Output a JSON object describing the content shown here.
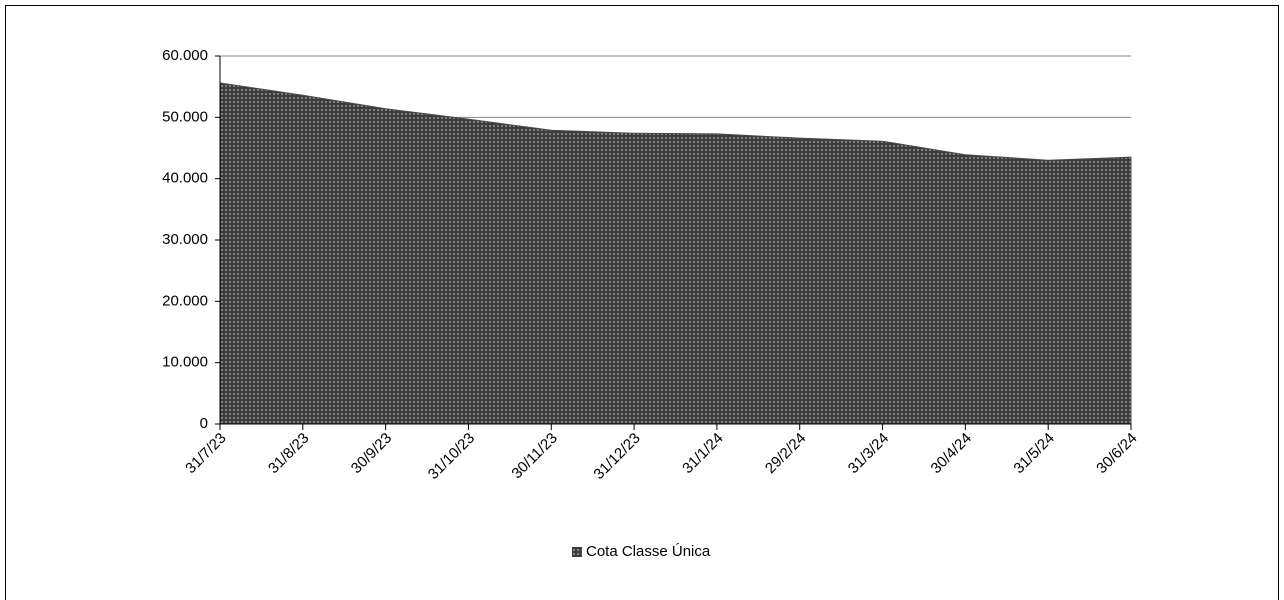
{
  "chart_data": {
    "type": "area",
    "categories": [
      "31/7/23",
      "31/8/23",
      "30/9/23",
      "31/10/23",
      "30/11/23",
      "31/12/23",
      "31/1/24",
      "29/2/24",
      "31/3/24",
      "30/4/24",
      "31/5/24",
      "30/6/24"
    ],
    "series": [
      {
        "name": "Cota Classe Única",
        "color": "#4a4a4a",
        "values": [
          55600,
          53600,
          51400,
          49700,
          47900,
          47400,
          47300,
          46600,
          46100,
          43900,
          43000,
          43500
        ]
      }
    ],
    "ylim": [
      0,
      60000
    ],
    "yticks": [
      0,
      {
        "value": 10000,
        "label": "10.000"
      },
      {
        "value": 20000,
        "label": "20.000"
      },
      {
        "value": 30000,
        "label": "30.000"
      },
      {
        "value": 40000,
        "label": "40.000"
      },
      {
        "value": 50000,
        "label": "50.000"
      },
      {
        "value": 60000,
        "label": "60.000"
      }
    ],
    "grid": true,
    "legend": "bottom"
  }
}
